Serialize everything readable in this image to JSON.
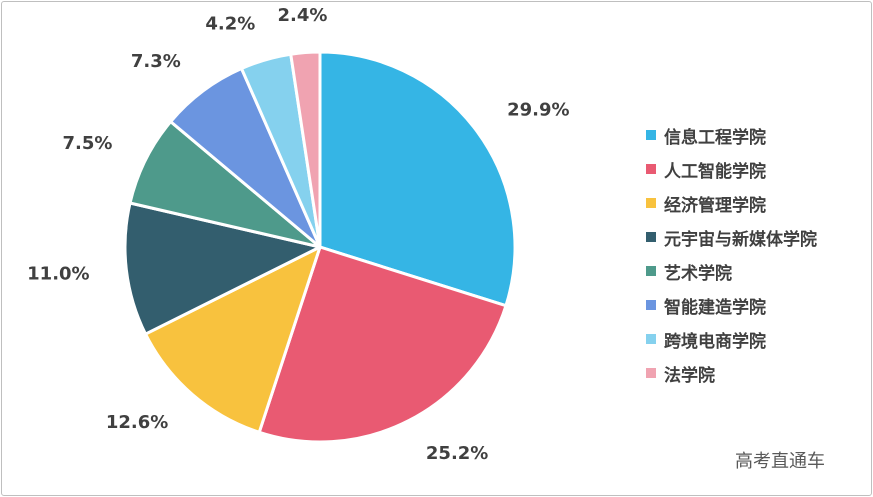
{
  "chart_data": {
    "type": "pie",
    "categories": [
      "信息工程学院",
      "人工智能学院",
      "经济管理学院",
      "元宇宙与新媒体学院",
      "艺术学院",
      "智能建造学院",
      "跨境电商学院",
      "法学院"
    ],
    "values": [
      29.9,
      25.2,
      12.6,
      11.0,
      7.5,
      7.3,
      4.2,
      2.4
    ],
    "data_labels": [
      "29.9%",
      "25.2%",
      "12.6%",
      "11.0%",
      "7.5%",
      "7.3%",
      "4.2%",
      "2.4%"
    ],
    "colors": [
      "#35b5e5",
      "#e95a72",
      "#f8c23e",
      "#335e6e",
      "#4e9a8b",
      "#6b95e0",
      "#85d1ee",
      "#f0a3b1"
    ],
    "legend_placement": "right",
    "title": "",
    "start_angle": "12 o'clock",
    "direction": "clockwise"
  },
  "watermark": "高考直通车"
}
